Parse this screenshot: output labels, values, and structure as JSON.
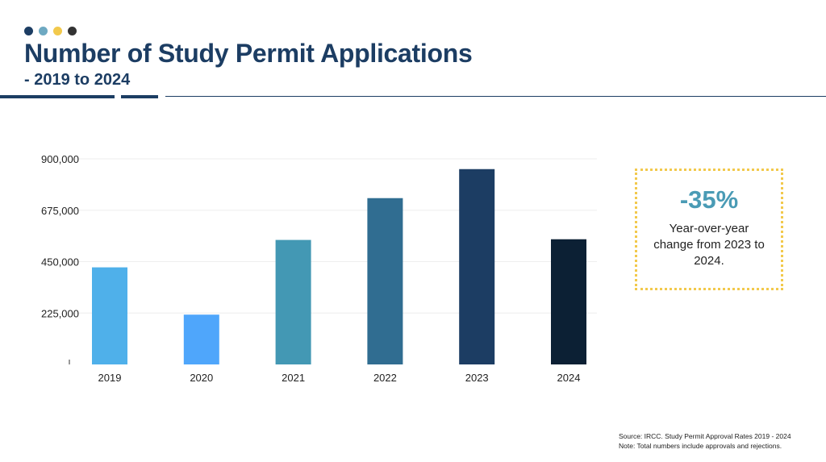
{
  "header": {
    "title": "Number of Study Permit Applications",
    "subtitle": "- 2019 to 2024",
    "dot_colors": [
      "#1c3d63",
      "#6ea9c2",
      "#f2c94c",
      "#333333"
    ]
  },
  "chart_data": {
    "type": "bar",
    "categories": [
      "2019",
      "2020",
      "2021",
      "2022",
      "2023",
      "2024"
    ],
    "values": [
      425000,
      218000,
      545000,
      728000,
      855000,
      548000
    ],
    "colors": [
      "#4fb0ea",
      "#4fa6fb",
      "#4398b4",
      "#306d91",
      "#1c3d63",
      "#0c2034"
    ],
    "ylim": [
      0,
      900000
    ],
    "yticks": [
      225000,
      450000,
      675000,
      900000
    ],
    "ytick_labels": [
      "225,000",
      "450,000",
      "675,000",
      "900,000"
    ],
    "grid": true,
    "title": "",
    "xlabel": "",
    "ylabel": ""
  },
  "callout": {
    "value": "-35%",
    "text": "Year-over-year change from 2023 to 2024.",
    "accent": "#4a9bb5",
    "border": "#f2c94c"
  },
  "footer": {
    "source": "Source: IRCC. Study Permit Approval Rates 2019 - 2024",
    "note": "Note: Total numbers include approvals and rejections."
  }
}
